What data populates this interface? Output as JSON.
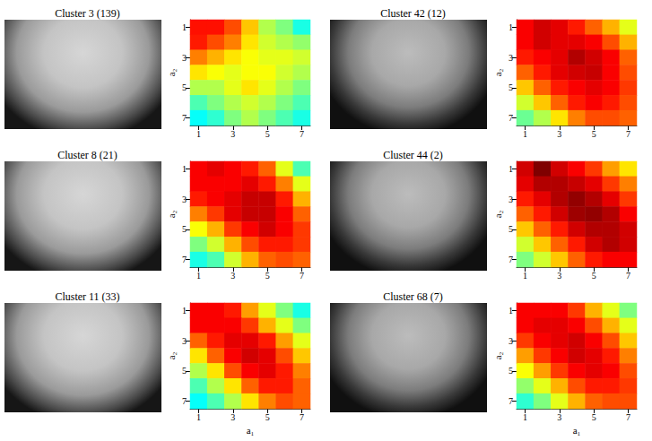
{
  "chart_data": [
    {
      "type": "heatmap",
      "title": "Cluster 3 (139)",
      "ylabel": "a₂",
      "x": [
        1,
        2,
        3,
        4,
        5,
        6,
        7
      ],
      "y": [
        1,
        2,
        3,
        4,
        5,
        6,
        7
      ],
      "xticks": [
        1,
        3,
        5,
        7
      ],
      "yticks": [
        1,
        3,
        5,
        7
      ],
      "color_range": [
        0,
        1
      ],
      "cells": [
        [
          0.86,
          0.86,
          0.8,
          0.68,
          0.55,
          0.5,
          0.4
        ],
        [
          0.85,
          0.8,
          0.75,
          0.65,
          0.58,
          0.55,
          0.52
        ],
        [
          0.75,
          0.7,
          0.65,
          0.62,
          0.6,
          0.6,
          0.58
        ],
        [
          0.65,
          0.62,
          0.6,
          0.62,
          0.62,
          0.58,
          0.55
        ],
        [
          0.55,
          0.55,
          0.6,
          0.65,
          0.6,
          0.55,
          0.5
        ],
        [
          0.45,
          0.5,
          0.55,
          0.58,
          0.55,
          0.5,
          0.45
        ],
        [
          0.38,
          0.42,
          0.5,
          0.55,
          0.5,
          0.45,
          0.4
        ]
      ]
    },
    {
      "type": "heatmap",
      "title": "Cluster 8 (21)",
      "ylabel": "a₂",
      "x": [
        1,
        2,
        3,
        4,
        5,
        6,
        7
      ],
      "y": [
        1,
        2,
        3,
        4,
        5,
        6,
        7
      ],
      "xticks": [
        1,
        3,
        5,
        7
      ],
      "yticks": [
        1,
        3,
        5,
        7
      ],
      "color_range": [
        0,
        1
      ],
      "cells": [
        [
          0.88,
          0.9,
          0.88,
          0.85,
          0.78,
          0.6,
          0.45
        ],
        [
          0.88,
          0.88,
          0.88,
          0.9,
          0.85,
          0.75,
          0.6
        ],
        [
          0.85,
          0.88,
          0.9,
          0.93,
          0.93,
          0.85,
          0.7
        ],
        [
          0.75,
          0.82,
          0.9,
          0.93,
          0.93,
          0.88,
          0.78
        ],
        [
          0.62,
          0.7,
          0.82,
          0.88,
          0.92,
          0.88,
          0.82
        ],
        [
          0.5,
          0.58,
          0.7,
          0.8,
          0.85,
          0.85,
          0.82
        ],
        [
          0.4,
          0.45,
          0.58,
          0.7,
          0.78,
          0.8,
          0.78
        ]
      ]
    },
    {
      "type": "heatmap",
      "title": "Cluster 11 (33)",
      "ylabel": "a₂",
      "xlabel": "a₁",
      "x": [
        1,
        2,
        3,
        4,
        5,
        6,
        7
      ],
      "y": [
        1,
        2,
        3,
        4,
        5,
        6,
        7
      ],
      "xticks": [
        1,
        3,
        5,
        7
      ],
      "yticks": [
        1,
        3,
        5,
        7
      ],
      "color_range": [
        0,
        1
      ],
      "cells": [
        [
          0.88,
          0.88,
          0.85,
          0.72,
          0.6,
          0.5,
          0.4
        ],
        [
          0.88,
          0.88,
          0.88,
          0.82,
          0.7,
          0.6,
          0.5
        ],
        [
          0.78,
          0.85,
          0.9,
          0.9,
          0.85,
          0.72,
          0.6
        ],
        [
          0.65,
          0.78,
          0.88,
          0.92,
          0.9,
          0.8,
          0.68
        ],
        [
          0.55,
          0.65,
          0.8,
          0.88,
          0.9,
          0.85,
          0.75
        ],
        [
          0.45,
          0.55,
          0.65,
          0.78,
          0.85,
          0.85,
          0.78
        ],
        [
          0.38,
          0.45,
          0.55,
          0.65,
          0.75,
          0.8,
          0.78
        ]
      ]
    },
    {
      "type": "heatmap",
      "title": "Cluster 42 (12)",
      "ylabel": "a₂",
      "x": [
        1,
        2,
        3,
        4,
        5,
        6,
        7
      ],
      "y": [
        1,
        2,
        3,
        4,
        5,
        6,
        7
      ],
      "xticks": [
        1,
        3,
        5,
        7
      ],
      "yticks": [
        1,
        3,
        5,
        7
      ],
      "color_range": [
        0,
        1
      ],
      "cells": [
        [
          0.88,
          0.92,
          0.9,
          0.85,
          0.78,
          0.7,
          0.6
        ],
        [
          0.88,
          0.92,
          0.9,
          0.9,
          0.88,
          0.8,
          0.7
        ],
        [
          0.85,
          0.88,
          0.9,
          0.95,
          0.92,
          0.88,
          0.78
        ],
        [
          0.78,
          0.85,
          0.9,
          0.92,
          0.93,
          0.88,
          0.8
        ],
        [
          0.68,
          0.78,
          0.85,
          0.88,
          0.9,
          0.88,
          0.82
        ],
        [
          0.58,
          0.68,
          0.78,
          0.85,
          0.88,
          0.85,
          0.8
        ],
        [
          0.48,
          0.55,
          0.65,
          0.75,
          0.8,
          0.8,
          0.78
        ]
      ]
    },
    {
      "type": "heatmap",
      "title": "Cluster 44 (2)",
      "ylabel": "a₂",
      "x": [
        1,
        2,
        3,
        4,
        5,
        6,
        7
      ],
      "y": [
        1,
        2,
        3,
        4,
        5,
        6,
        7
      ],
      "xticks": [
        1,
        3,
        5,
        7
      ],
      "yticks": [
        1,
        3,
        5,
        7
      ],
      "color_range": [
        0,
        1
      ],
      "cells": [
        [
          0.92,
          1.0,
          0.92,
          0.88,
          0.82,
          0.72,
          0.65
        ],
        [
          0.9,
          0.95,
          0.95,
          0.93,
          0.9,
          0.82,
          0.75
        ],
        [
          0.85,
          0.9,
          0.95,
          0.98,
          0.95,
          0.9,
          0.82
        ],
        [
          0.78,
          0.85,
          0.92,
          0.97,
          0.98,
          0.95,
          0.88
        ],
        [
          0.68,
          0.78,
          0.85,
          0.92,
          0.95,
          0.95,
          0.92
        ],
        [
          0.58,
          0.68,
          0.78,
          0.85,
          0.92,
          0.95,
          0.92
        ],
        [
          0.5,
          0.58,
          0.68,
          0.78,
          0.85,
          0.88,
          0.88
        ]
      ]
    },
    {
      "type": "heatmap",
      "title": "Cluster 68 (7)",
      "ylabel": "a₂",
      "xlabel": "a₁",
      "x": [
        1,
        2,
        3,
        4,
        5,
        6,
        7
      ],
      "y": [
        1,
        2,
        3,
        4,
        5,
        6,
        7
      ],
      "xticks": [
        1,
        3,
        5,
        7
      ],
      "yticks": [
        1,
        3,
        5,
        7
      ],
      "color_range": [
        0,
        1
      ],
      "cells": [
        [
          0.88,
          0.88,
          0.88,
          0.82,
          0.7,
          0.6,
          0.5
        ],
        [
          0.88,
          0.9,
          0.9,
          0.88,
          0.8,
          0.7,
          0.6
        ],
        [
          0.82,
          0.88,
          0.9,
          0.92,
          0.88,
          0.8,
          0.68
        ],
        [
          0.72,
          0.82,
          0.88,
          0.92,
          0.9,
          0.85,
          0.75
        ],
        [
          0.62,
          0.72,
          0.82,
          0.88,
          0.9,
          0.88,
          0.8
        ],
        [
          0.52,
          0.6,
          0.7,
          0.8,
          0.85,
          0.85,
          0.82
        ],
        [
          0.42,
          0.5,
          0.6,
          0.7,
          0.78,
          0.8,
          0.8
        ]
      ]
    }
  ]
}
